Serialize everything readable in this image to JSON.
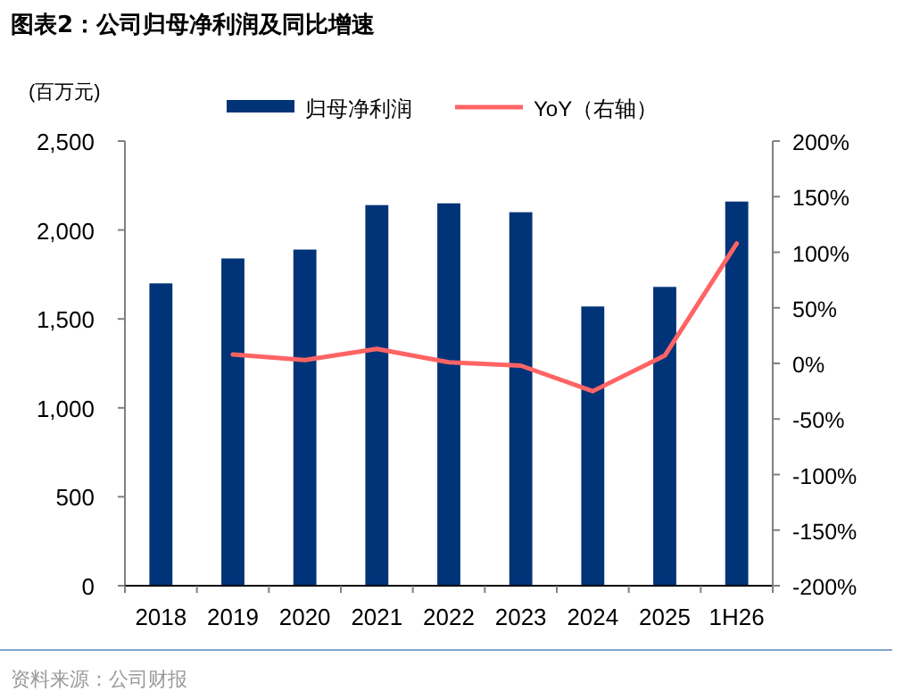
{
  "chart_data": {
    "type": "bar",
    "title": "图表2：公司归母净利润及同比增速",
    "ylabel": "(百万元)",
    "categories": [
      "2018",
      "2019",
      "2020",
      "2021",
      "2022",
      "2023",
      "2024",
      "2025",
      "1H26"
    ],
    "series": [
      {
        "name": "归母净利润",
        "color": "#003378",
        "values": [
          1700,
          1840,
          1890,
          2140,
          2150,
          2100,
          1570,
          1680,
          2160
        ]
      },
      {
        "name": "YoY（右轴）",
        "type": "line",
        "axis": "y2",
        "color": "#ff6464",
        "values": [
          null,
          8,
          3,
          13,
          1,
          -2,
          -25,
          7,
          108
        ]
      }
    ],
    "ylim": [
      0,
      2500
    ],
    "yticks": [
      {
        "value": 0,
        "label": "0"
      },
      {
        "value": 500,
        "label": "500"
      },
      {
        "value": 1000,
        "label": "1,000"
      },
      {
        "value": 1500,
        "label": "1,500"
      },
      {
        "value": 2000,
        "label": "2,000"
      },
      {
        "value": 2500,
        "label": "2,500"
      }
    ],
    "y2lim": [
      -200,
      200
    ],
    "y2ticks": [
      {
        "value": -200,
        "label": "-200%"
      },
      {
        "value": -150,
        "label": "-150%"
      },
      {
        "value": -100,
        "label": "-100%"
      },
      {
        "value": -50,
        "label": "-50%"
      },
      {
        "value": 0,
        "label": "0%"
      },
      {
        "value": 50,
        "label": "50%"
      },
      {
        "value": 100,
        "label": "100%"
      },
      {
        "value": 150,
        "label": "150%"
      },
      {
        "value": 200,
        "label": "200%"
      }
    ],
    "legend": "top",
    "grid": false,
    "marker": "none",
    "line_style": "solid",
    "annotations": [
      "资料来源：公司财报"
    ]
  }
}
